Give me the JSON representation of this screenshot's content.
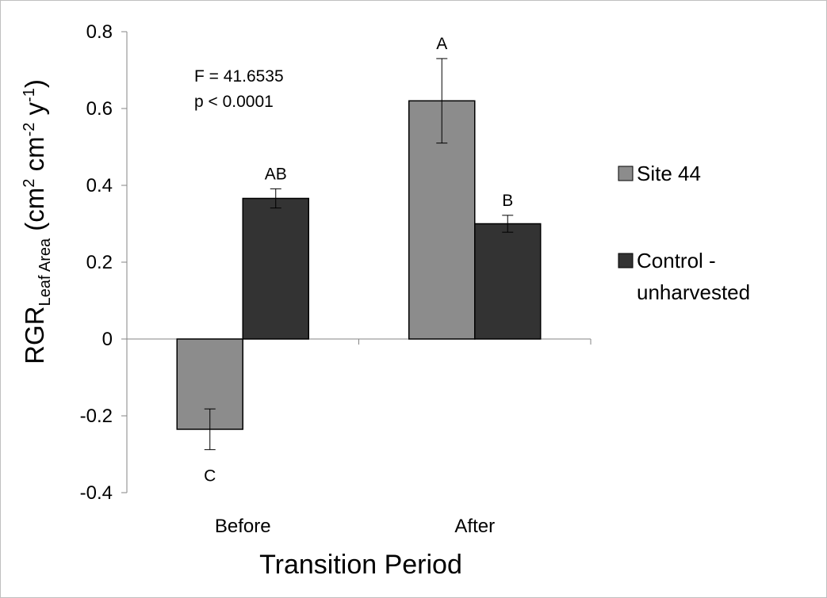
{
  "chart_data": {
    "type": "bar",
    "title": "",
    "xlabel": "Transition Period",
    "ylabel": {
      "main": "RGR",
      "sub": "Leaf Area",
      "units_open": " (cm",
      "units_sup1": "2",
      "units_mid": " cm",
      "units_sup2": "-2",
      "units_y": " y",
      "units_sup3": "-1",
      "units_close": ")"
    },
    "ylim": [
      -0.4,
      0.8
    ],
    "yticks": [
      -0.4,
      -0.2,
      0,
      0.2,
      0.4,
      0.6,
      0.8
    ],
    "ytick_labels": [
      "-0.4",
      "-0.2",
      "0",
      "0.2",
      "0.4",
      "0.6",
      "0.8"
    ],
    "categories": [
      "Before",
      "After"
    ],
    "series": [
      {
        "name": "Site 44",
        "color": "#8c8c8c",
        "values": [
          -0.235,
          0.62
        ],
        "errors": [
          0.053,
          0.11
        ],
        "letters": [
          "C",
          "A"
        ]
      },
      {
        "name": "Control - unharvested",
        "legend_lines": [
          "Control -",
          "unharvested"
        ],
        "color": "#333333",
        "values": [
          0.366,
          0.3
        ],
        "errors": [
          0.025,
          0.022
        ],
        "letters": [
          "AB",
          "B"
        ]
      }
    ],
    "annotations": [
      "F = 41.6535",
      "p < 0.0001"
    ],
    "grid": false,
    "legend_position": "right"
  }
}
